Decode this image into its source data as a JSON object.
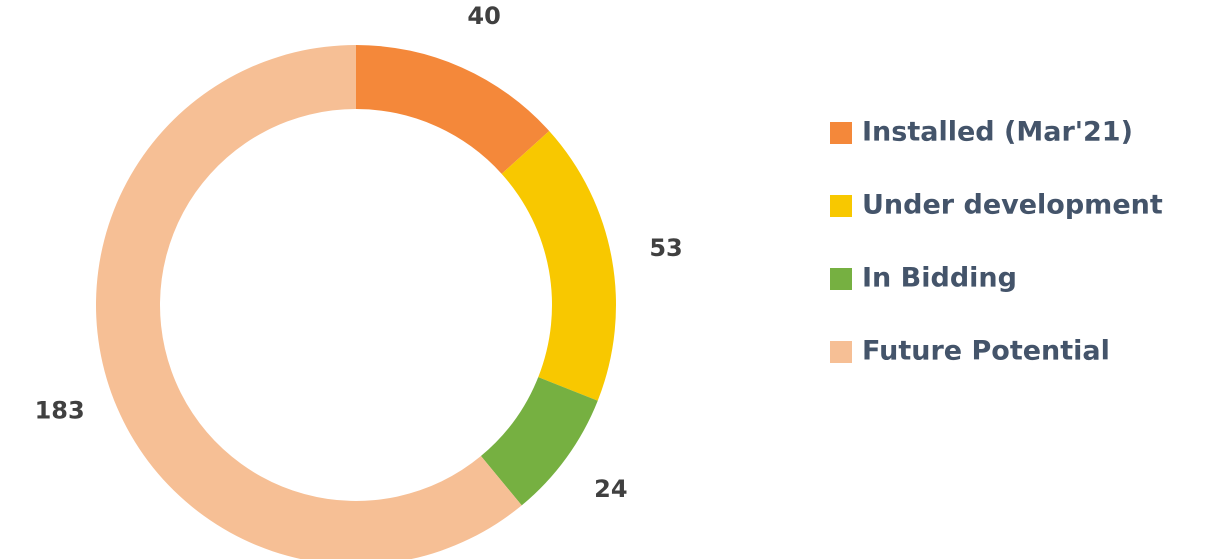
{
  "chart_data": {
    "type": "donut",
    "categories": [
      "Installed (Mar'21)",
      "Under development",
      "In Bidding",
      "Future Potential"
    ],
    "values": [
      40,
      53,
      24,
      183
    ],
    "colors": [
      "#f4883a",
      "#f8c800",
      "#76b041",
      "#f6bf95"
    ],
    "legend": "right"
  }
}
